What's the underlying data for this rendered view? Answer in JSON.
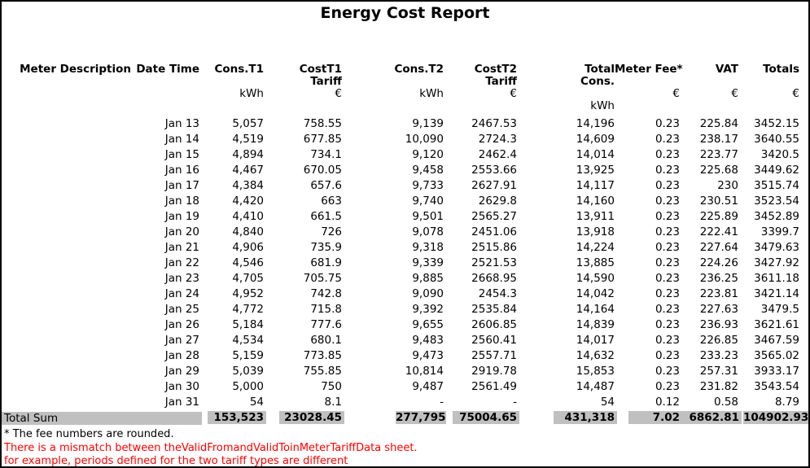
{
  "title": "Energy Cost Report",
  "colors": {
    "total_row_bg": "#C0C0C0",
    "warning_text": "#FF0000",
    "page_border": "#000000"
  },
  "table": {
    "columns": [
      {
        "key": "meter_description",
        "label": "Meter Description",
        "sub": "",
        "unit": "",
        "unit2": ""
      },
      {
        "key": "date_time",
        "label": "Date Time",
        "sub": "",
        "unit": "",
        "unit2": ""
      },
      {
        "key": "cons_t1",
        "label": "Cons.T1",
        "sub": "",
        "unit": "kWh",
        "unit2": ""
      },
      {
        "key": "cost_t1_tariff",
        "label": "CostT1",
        "sub": "Tariff",
        "unit": "€",
        "unit2": ""
      },
      {
        "key": "cons_t2",
        "label": "Cons.T2",
        "sub": "",
        "unit": "kWh",
        "unit2": ""
      },
      {
        "key": "cost_t2_tariff",
        "label": "CostT2",
        "sub": "Tariff",
        "unit": "€",
        "unit2": ""
      },
      {
        "key": "total_cons",
        "label": "Total",
        "sub": "Cons.",
        "unit": "",
        "unit2": "kWh"
      },
      {
        "key": "meter_fee",
        "label": "Meter Fee*",
        "sub": "",
        "unit": "€",
        "unit2": ""
      },
      {
        "key": "vat",
        "label": "VAT",
        "sub": "",
        "unit": "€",
        "unit2": ""
      },
      {
        "key": "totals",
        "label": "Totals",
        "sub": "",
        "unit": "€",
        "unit2": ""
      }
    ],
    "rows": [
      [
        "Jan 13",
        "5,057",
        "758.55",
        "9,139",
        "2467.53",
        "14,196",
        "0.23",
        "225.84",
        "3452.15"
      ],
      [
        "Jan 14",
        "4,519",
        "677.85",
        "10,090",
        "2724.3",
        "14,609",
        "0.23",
        "238.17",
        "3640.55"
      ],
      [
        "Jan 15",
        "4,894",
        "734.1",
        "9,120",
        "2462.4",
        "14,014",
        "0.23",
        "223.77",
        "3420.5"
      ],
      [
        "Jan 16",
        "4,467",
        "670.05",
        "9,458",
        "2553.66",
        "13,925",
        "0.23",
        "225.68",
        "3449.62"
      ],
      [
        "Jan 17",
        "4,384",
        "657.6",
        "9,733",
        "2627.91",
        "14,117",
        "0.23",
        "230",
        "3515.74"
      ],
      [
        "Jan 18",
        "4,420",
        "663",
        "9,740",
        "2629.8",
        "14,160",
        "0.23",
        "230.51",
        "3523.54"
      ],
      [
        "Jan 19",
        "4,410",
        "661.5",
        "9,501",
        "2565.27",
        "13,911",
        "0.23",
        "225.89",
        "3452.89"
      ],
      [
        "Jan 20",
        "4,840",
        "726",
        "9,078",
        "2451.06",
        "13,918",
        "0.23",
        "222.41",
        "3399.7"
      ],
      [
        "Jan 21",
        "4,906",
        "735.9",
        "9,318",
        "2515.86",
        "14,224",
        "0.23",
        "227.64",
        "3479.63"
      ],
      [
        "Jan 22",
        "4,546",
        "681.9",
        "9,339",
        "2521.53",
        "13,885",
        "0.23",
        "224.26",
        "3427.92"
      ],
      [
        "Jan 23",
        "4,705",
        "705.75",
        "9,885",
        "2668.95",
        "14,590",
        "0.23",
        "236.25",
        "3611.18"
      ],
      [
        "Jan 24",
        "4,952",
        "742.8",
        "9,090",
        "2454.3",
        "14,042",
        "0.23",
        "223.81",
        "3421.14"
      ],
      [
        "Jan 25",
        "4,772",
        "715.8",
        "9,392",
        "2535.84",
        "14,164",
        "0.23",
        "227.63",
        "3479.5"
      ],
      [
        "Jan 26",
        "5,184",
        "777.6",
        "9,655",
        "2606.85",
        "14,839",
        "0.23",
        "236.93",
        "3621.61"
      ],
      [
        "Jan 27",
        "4,534",
        "680.1",
        "9,483",
        "2560.41",
        "14,017",
        "0.23",
        "226.85",
        "3467.59"
      ],
      [
        "Jan 28",
        "5,159",
        "773.85",
        "9,473",
        "2557.71",
        "14,632",
        "0.23",
        "233.23",
        "3565.02"
      ],
      [
        "Jan 29",
        "5,039",
        "755.85",
        "10,814",
        "2919.78",
        "15,853",
        "0.23",
        "257.31",
        "3933.17"
      ],
      [
        "Jan 30",
        "5,000",
        "750",
        "9,487",
        "2561.49",
        "14,487",
        "0.23",
        "231.82",
        "3543.54"
      ],
      [
        "Jan 31",
        "54",
        "8.1",
        "-",
        "-",
        "54",
        "0.12",
        "0.58",
        "8.79"
      ]
    ],
    "total_row": {
      "label": "Total Sum",
      "values": [
        "153,523",
        "23028.45",
        "277,795",
        "75004.65",
        "431,318",
        "7.02",
        "6862.81",
        "104902.93"
      ]
    }
  },
  "footnotes": {
    "note": "* The fee numbers are rounded.",
    "warning_line1": "There is a mismatch between theValidFromandValidToinMeterTariffData sheet.",
    "warning_line2": "for example, periods defined for the two tariff types are different"
  }
}
